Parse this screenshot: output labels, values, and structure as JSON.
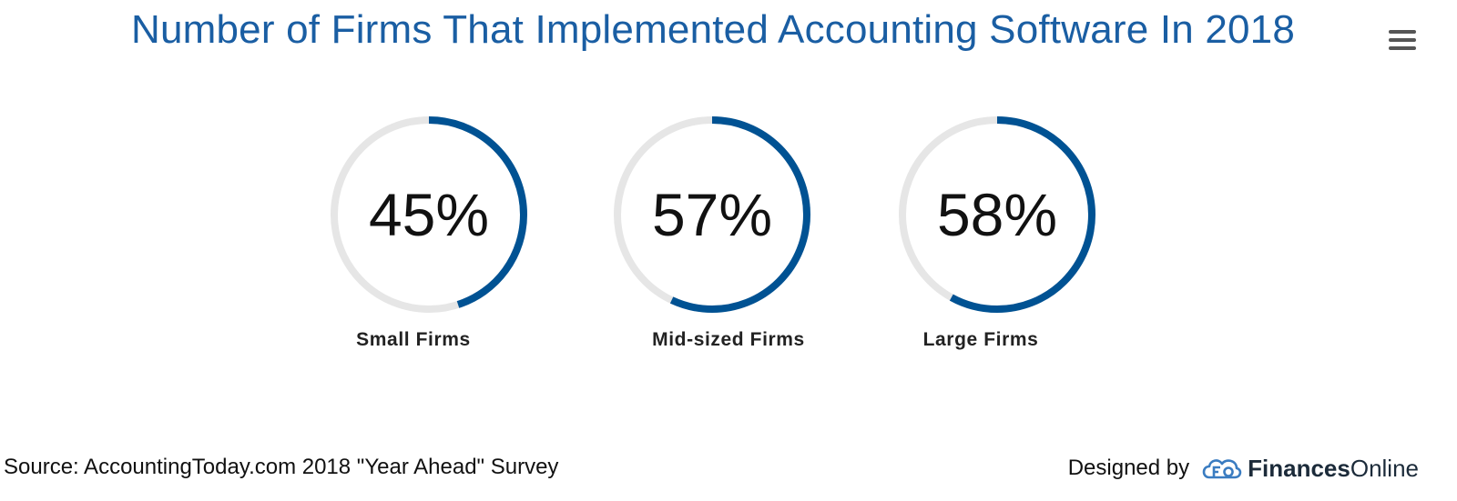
{
  "header": {
    "title": "Number of Firms That Implemented Accounting Software In 2018"
  },
  "menu": {
    "icon": "hamburger-menu-icon"
  },
  "chart_data": {
    "type": "donut-gauges",
    "title": "Number of Firms That Implemented Accounting Software In 2018",
    "unit": "%",
    "max": 100,
    "items": [
      {
        "label": "Small Firms",
        "value": 45,
        "display": "45%"
      },
      {
        "label": "Mid-sized Firms",
        "value": 57,
        "display": "57%"
      },
      {
        "label": "Large Firms",
        "value": 58,
        "display": "58%"
      }
    ],
    "colors": {
      "fill": "#005293",
      "track": "#e6e6e6"
    }
  },
  "footer": {
    "source": "Source: AccountingToday.com 2018 \"Year Ahead\" Survey",
    "designed_by": "Designed by",
    "brand_bold": "Finances",
    "brand_light": "Online",
    "brand_icon": "financesonline-logo-icon"
  }
}
